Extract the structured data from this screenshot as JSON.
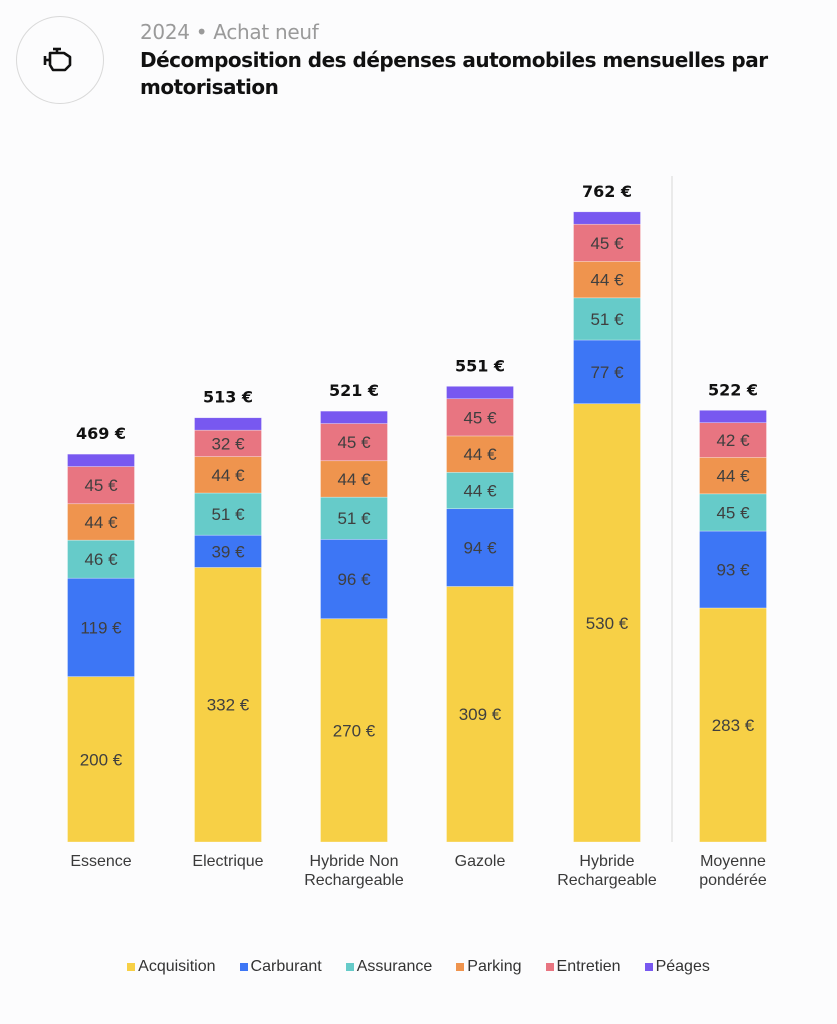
{
  "header": {
    "icon": "engine-icon",
    "subtitle": "2024 • Achat neuf",
    "title": "Décomposition des dépenses automobiles mensuelles par motorisation"
  },
  "chart_data": {
    "type": "bar",
    "stacked": true,
    "title": "Décomposition des dépenses automobiles mensuelles par motorisation",
    "subtitle": "2024 • Achat neuf",
    "xlabel": "",
    "ylabel": "",
    "unit": "€",
    "ylim": [
      0,
      800
    ],
    "grid": false,
    "legend_position": "bottom",
    "categories": [
      "Essence",
      "Electrique",
      "Hybride Non Rechargeable",
      "Gazole",
      "Hybride Rechargeable",
      "Moyenne pondérée"
    ],
    "category_labels": [
      [
        "Essence"
      ],
      [
        "Electrique"
      ],
      [
        "Hybride Non",
        "Rechargeable"
      ],
      [
        "Gazole"
      ],
      [
        "Hybride",
        "Rechargeable"
      ],
      [
        "Moyenne",
        "pondérée"
      ]
    ],
    "totals": [
      469,
      513,
      521,
      551,
      762,
      522
    ],
    "total_labels": [
      "469 €",
      "513 €",
      "521 €",
      "551 €",
      "762 €",
      "522 €"
    ],
    "separator_before_category": 5,
    "series": [
      {
        "name": "Acquisition",
        "color": "#f7d046",
        "values": [
          200,
          332,
          270,
          309,
          530,
          283
        ],
        "labeled": true
      },
      {
        "name": "Carburant",
        "color": "#3d76f5",
        "values": [
          119,
          39,
          96,
          94,
          77,
          93
        ],
        "labeled": true
      },
      {
        "name": "Assurance",
        "color": "#66cbc9",
        "values": [
          46,
          51,
          51,
          44,
          51,
          45
        ],
        "labeled": true
      },
      {
        "name": "Parking",
        "color": "#ef944e",
        "values": [
          44,
          44,
          44,
          44,
          44,
          44
        ],
        "labeled": true
      },
      {
        "name": "Entretien",
        "color": "#e87581",
        "values": [
          45,
          32,
          45,
          45,
          45,
          42
        ],
        "labeled": true
      },
      {
        "name": "Péages",
        "color": "#7858f0",
        "values": [
          15,
          15,
          15,
          15,
          15,
          15
        ],
        "labeled": false
      }
    ]
  },
  "legend": [
    {
      "label": "Acquisition",
      "color": "#f7d046"
    },
    {
      "label": "Carburant",
      "color": "#3d76f5"
    },
    {
      "label": "Assurance",
      "color": "#66cbc9"
    },
    {
      "label": "Parking",
      "color": "#ef944e"
    },
    {
      "label": "Entretien",
      "color": "#e87581"
    },
    {
      "label": "Péages",
      "color": "#7858f0"
    }
  ]
}
